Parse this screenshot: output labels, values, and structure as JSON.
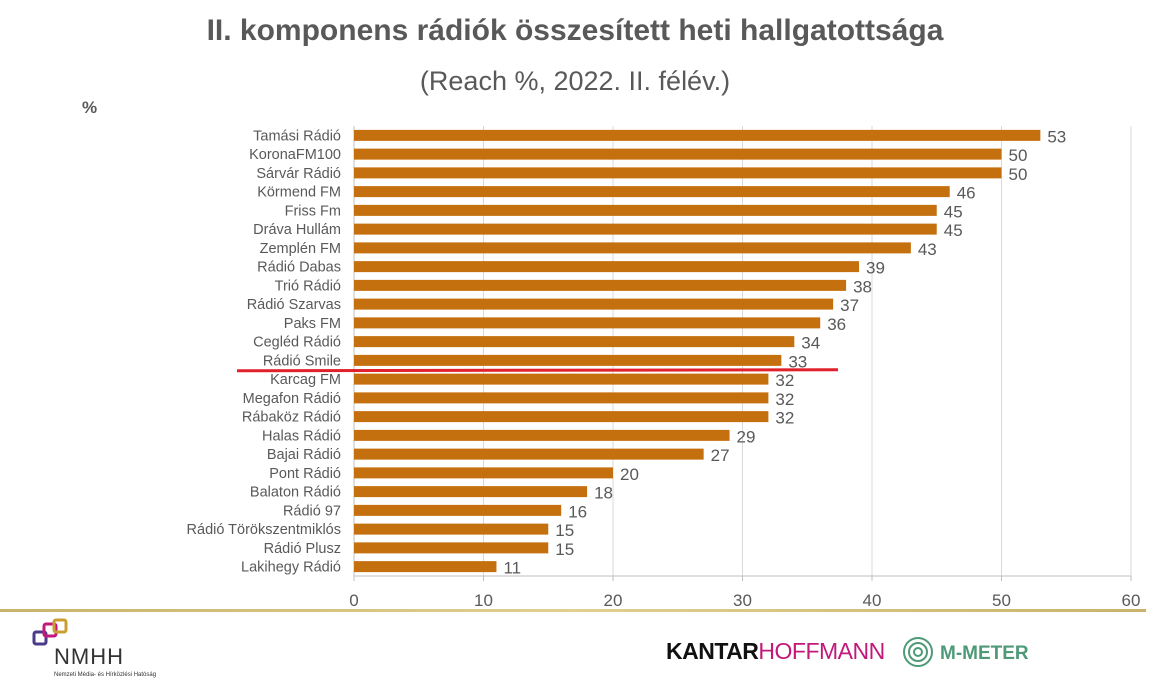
{
  "title": "II. komponens rádiók összesített heti hallgatottsága",
  "subtitle": "(Reach %, 2022. II. félév.)",
  "chart_data": {
    "type": "bar",
    "orientation": "horizontal",
    "ylabel": "%",
    "categories": [
      "Tamási Rádió",
      "KoronaFM100",
      "Sárvár Rádió",
      "Körmend FM",
      "Friss Fm",
      "Dráva Hullám",
      "Zemplén FM",
      "Rádió Dabas",
      "Trió Rádió",
      "Rádió Szarvas",
      "Paks FM",
      "Cegléd Rádió",
      "Rádió Smile",
      "Karcag FM",
      "Megafon Rádió",
      "Rábaköz Rádió",
      "Halas Rádió",
      "Bajai Rádió",
      "Pont Rádió",
      "Balaton Rádió",
      "Rádió 97",
      "Rádió Törökszentmiklós",
      "Rádió Plusz",
      "Lakihegy Rádió"
    ],
    "values": [
      53,
      50,
      50,
      46,
      45,
      45,
      43,
      39,
      38,
      37,
      36,
      34,
      33,
      32,
      32,
      32,
      29,
      27,
      20,
      18,
      16,
      15,
      15,
      11
    ],
    "xlim": [
      0,
      60
    ],
    "xticks": [
      "0",
      "10",
      "20",
      "30",
      "40",
      "50",
      "60"
    ],
    "grid": true,
    "bar_color": "#c5700f",
    "marker_line_color": "#e0202a",
    "marker_after_category": "Rádió Smile"
  },
  "footer": {
    "nmhh_logo_text": "NMHH",
    "nmhh_caption": "Nemzeti Média- és Hírközlési Hatóság",
    "kantar_part1": "KANTAR",
    "kantar_part2": "HOFFMANN",
    "mmeter_text": "M-METER"
  }
}
